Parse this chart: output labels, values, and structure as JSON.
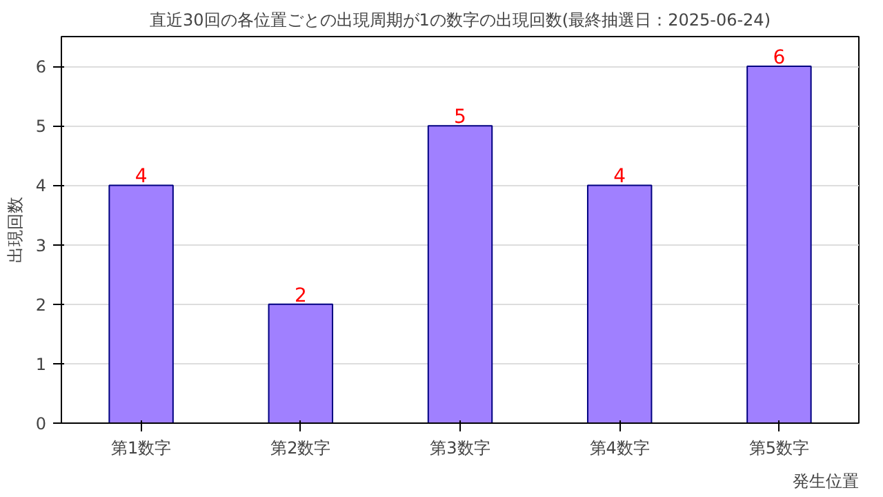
{
  "chart_data": {
    "type": "bar",
    "title": "直近30回の各位置ごとの出現周期が1の数字の出現回数(最終抽選日：2025-06-24)",
    "xlabel": "発生位置",
    "ylabel": "出現回数",
    "categories": [
      "第1数字",
      "第2数字",
      "第3数字",
      "第4数字",
      "第5数字"
    ],
    "values": [
      4,
      2,
      5,
      4,
      6
    ],
    "color": "#a080ff",
    "ylim": [
      0,
      6.5
    ],
    "yticks": [
      0,
      1,
      2,
      3,
      4,
      5,
      6
    ],
    "grid": "y",
    "data_labels": true
  }
}
